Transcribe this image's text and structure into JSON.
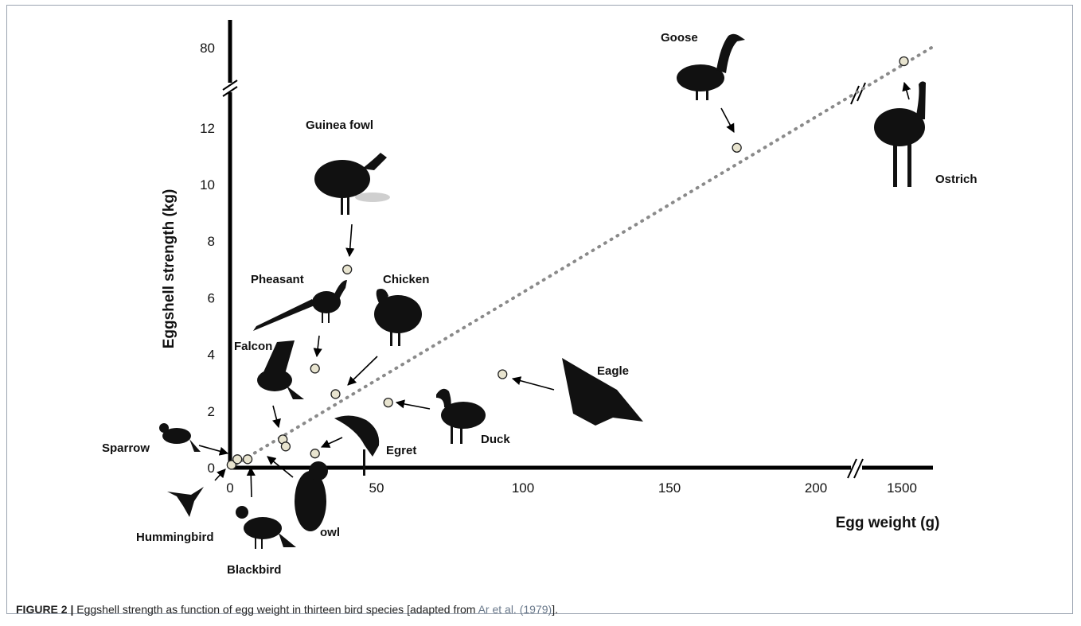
{
  "chart_data": {
    "type": "scatter",
    "xlabel": "Egg weight (g)",
    "ylabel": "Eggshell strength (kg)",
    "x_ticks": [
      "0",
      "50",
      "100",
      "150",
      "200",
      "1500"
    ],
    "y_ticks": [
      "0",
      "2",
      "4",
      "6",
      "8",
      "10",
      "12",
      "80"
    ],
    "xlim": [
      0,
      215
    ],
    "ylim": [
      0,
      13
    ],
    "axis_breaks": {
      "x": "between 200 and 1500",
      "y": "between 12 and 80"
    },
    "trendline": {
      "style": "dotted",
      "from": [
        0,
        0
      ],
      "to": [
        1500,
        80
      ]
    },
    "points": [
      {
        "label": "Hummingbird",
        "x": 0.5,
        "y": 0.1
      },
      {
        "label": "Sparrow",
        "x": 2.5,
        "y": 0.3
      },
      {
        "label": "Blackbird",
        "x": 6,
        "y": 0.3
      },
      {
        "label": "Falcon",
        "x": 18,
        "y": 1.0
      },
      {
        "label": "owl",
        "x": 19,
        "y": 0.75
      },
      {
        "label": "Egret",
        "x": 29,
        "y": 0.5
      },
      {
        "label": "Pheasant",
        "x": 29,
        "y": 3.5
      },
      {
        "label": "Chicken",
        "x": 36,
        "y": 2.6
      },
      {
        "label": "Guinea fowl",
        "x": 40,
        "y": 7.0
      },
      {
        "label": "Duck",
        "x": 54,
        "y": 2.3
      },
      {
        "label": "Eagle",
        "x": 93,
        "y": 3.3
      },
      {
        "label": "Goose",
        "x": 173,
        "y": 11.3
      },
      {
        "label": "Ostrich",
        "x": 1450,
        "y": 80
      }
    ]
  },
  "caption": {
    "lead": "FIGURE 2 |",
    "text": " Eggshell strength as function of egg weight in thirteen bird species [adapted from ",
    "cite": "Ar et al. (1979)",
    "tail": "]."
  }
}
